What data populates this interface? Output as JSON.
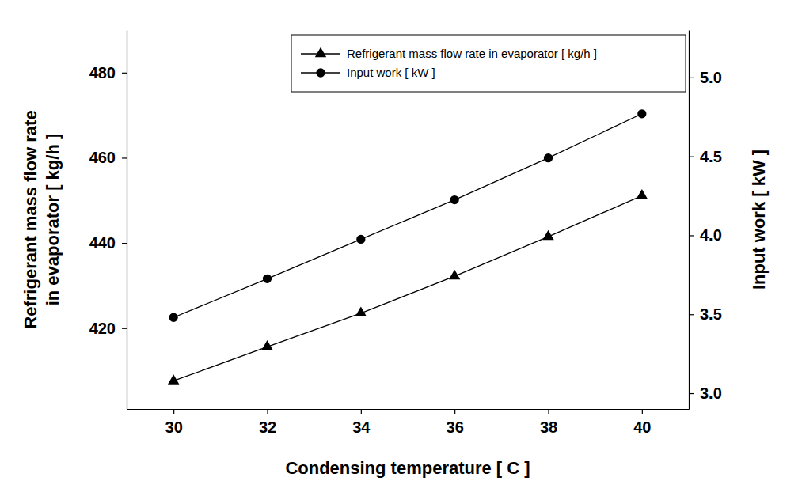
{
  "chart_data": {
    "type": "line",
    "x_label": "Condensing temperature [ C ]",
    "y_label": [
      "Refrigerant mass flow rate",
      "in evaporator [ kg/h ]"
    ],
    "y2_label": "Input work [ kW ]",
    "x": [
      30,
      32,
      34,
      36,
      38,
      40
    ],
    "xlim": [
      29,
      41
    ],
    "xticks": [
      30,
      32,
      34,
      36,
      38,
      40
    ],
    "ylim": [
      401,
      490
    ],
    "yticks": [
      420,
      440,
      460,
      480
    ],
    "y2lim": [
      2.9,
      5.3
    ],
    "y2ticks": [
      {
        "value": 3,
        "label": "3.0"
      },
      3.5,
      {
        "value": 4,
        "label": "4.0"
      },
      4.5,
      {
        "value": 5,
        "label": "5.0"
      }
    ],
    "legend": "upper right",
    "grid": false,
    "series": [
      {
        "name": "Refrigerant mass flow rate in evaporator [ kg/h ]",
        "color": "#000000",
        "marker": "triangle",
        "line_style": "solid",
        "values": [
          407.6,
          415.6,
          423.5,
          432.2,
          441.5,
          451.1
        ]
      },
      {
        "name": "Input work [ kW ]",
        "color": "#000000",
        "marker": "circle",
        "line_style": "solid",
        "axis": "y2",
        "values": [
          3.48,
          3.725,
          3.975,
          4.225,
          4.49,
          4.77
        ]
      }
    ]
  }
}
